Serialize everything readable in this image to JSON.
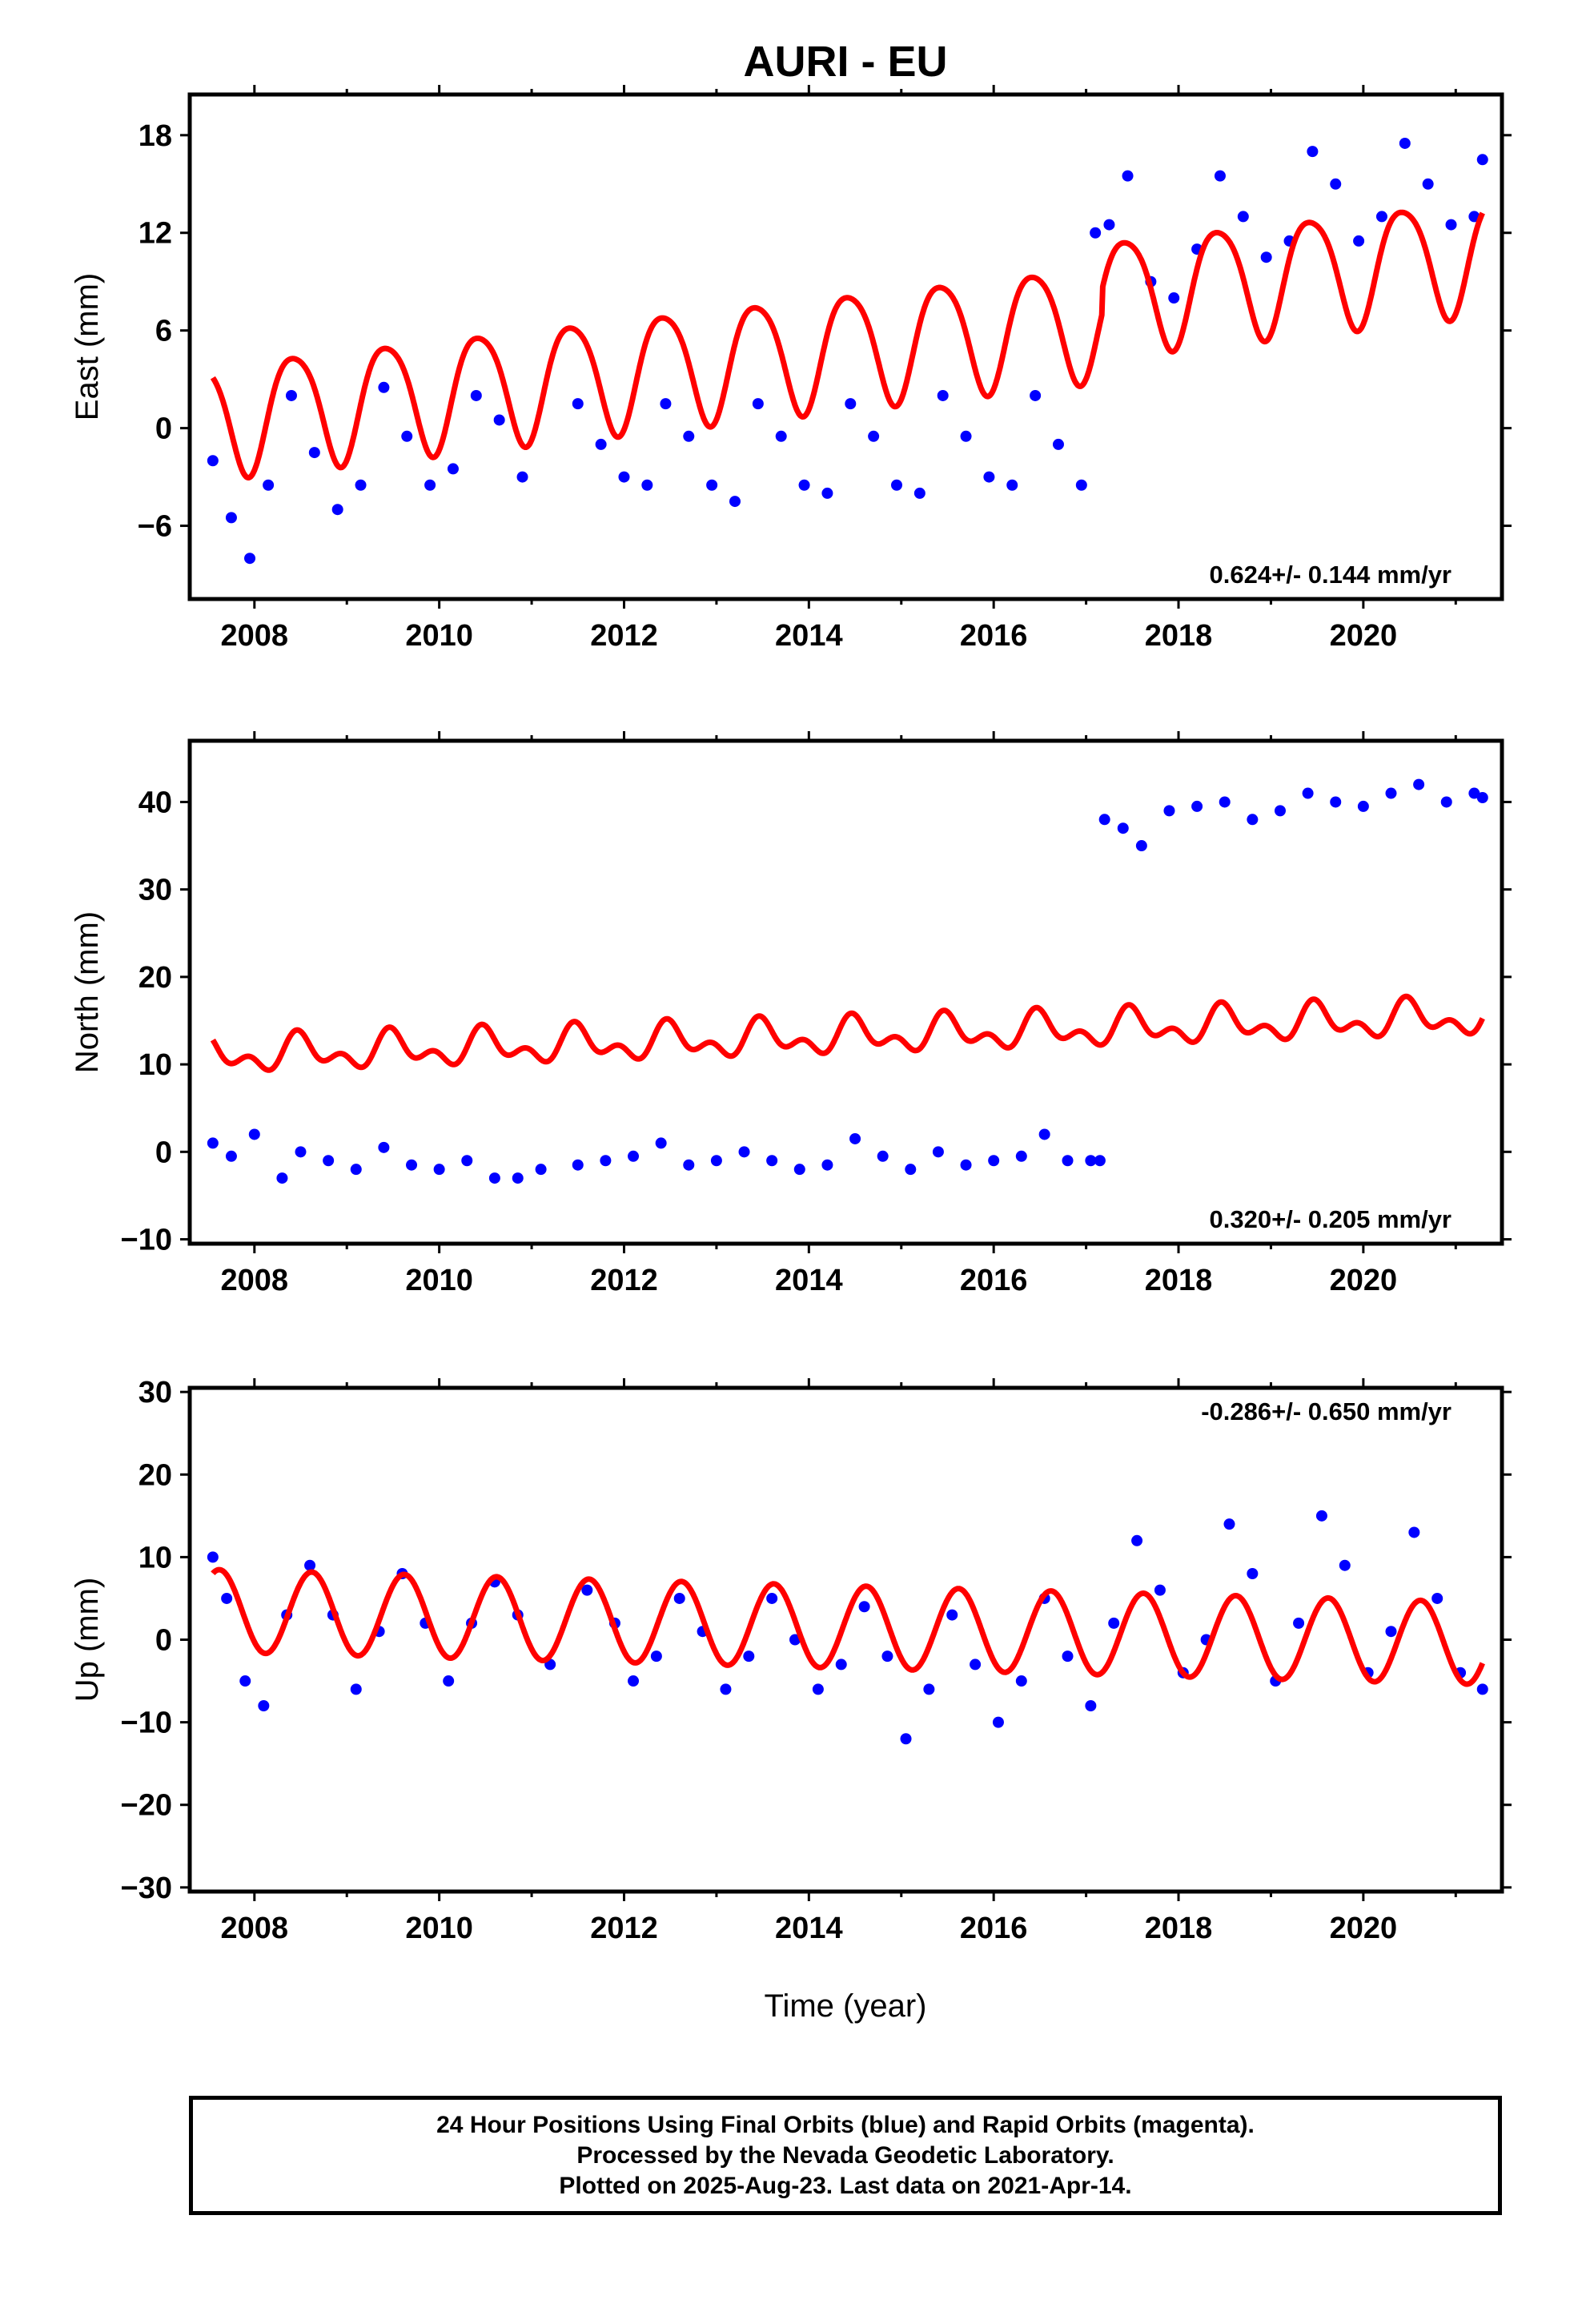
{
  "title": "AURI - EU",
  "xlabel": "Time (year)",
  "footer": {
    "line1": "24 Hour Positions Using Final Orbits (blue) and Rapid Orbits (magenta).",
    "line2": "Processed by the Nevada Geodetic Laboratory.",
    "line3": "Plotted on 2025-Aug-23. Last data on 2021-Apr-14."
  },
  "colors": {
    "final_orbits": "#0000ff",
    "model": "#ff0000",
    "axes": "#000000"
  },
  "chart_data": [
    {
      "type": "scatter",
      "ylabel": "East (mm)",
      "rate_annotation": "0.624+/- 0.144 mm/yr",
      "xlim": [
        2007.3,
        2021.5
      ],
      "ylim": [
        -10.5,
        20.5
      ],
      "xticks": [
        2008,
        2010,
        2012,
        2014,
        2016,
        2018,
        2020
      ],
      "yticks": [
        -6,
        0,
        6,
        12,
        18
      ],
      "grid": false,
      "series": [
        {
          "type": "scatter",
          "color": "#0000ff",
          "x": [
            2007.55,
            2007.75,
            2007.95,
            2008.15,
            2008.4,
            2008.65,
            2008.9,
            2009.15,
            2009.4,
            2009.65,
            2009.9,
            2010.15,
            2010.4,
            2010.65,
            2010.9,
            2011.5,
            2011.75,
            2012.0,
            2012.25,
            2012.45,
            2012.7,
            2012.95,
            2013.2,
            2013.45,
            2013.7,
            2013.95,
            2014.2,
            2014.45,
            2014.7,
            2014.95,
            2015.2,
            2015.45,
            2015.7,
            2015.95,
            2016.2,
            2016.45,
            2016.7,
            2016.95,
            2017.1,
            2017.25,
            2017.45,
            2017.7,
            2017.95,
            2018.2,
            2018.45,
            2018.7,
            2018.95,
            2019.2,
            2019.45,
            2019.7,
            2019.95,
            2020.2,
            2020.45,
            2020.7,
            2020.95,
            2021.2,
            2021.29
          ],
          "y": [
            -2.0,
            -5.5,
            -8.0,
            -3.5,
            2.0,
            -1.5,
            -5.0,
            -3.5,
            2.5,
            -0.5,
            -3.5,
            -2.5,
            2.0,
            0.5,
            -3.0,
            1.5,
            -1.0,
            -3.0,
            -3.5,
            1.5,
            -0.5,
            -3.5,
            -4.5,
            1.5,
            -0.5,
            -3.5,
            -4.0,
            1.5,
            -0.5,
            -3.5,
            -4.0,
            2.0,
            -0.5,
            -3.0,
            -3.5,
            2.0,
            -1.0,
            -3.5,
            12.0,
            12.5,
            15.5,
            9.0,
            8.0,
            11.0,
            15.5,
            13.0,
            10.5,
            11.5,
            17.0,
            15.0,
            11.5,
            13.0,
            17.5,
            15.0,
            12.5,
            13.0,
            16.5
          ]
        },
        {
          "type": "line",
          "color": "#ff0000",
          "model": {
            "t0": 2007.55,
            "offset": 0.7,
            "rate": 0.624,
            "annual": 3.5,
            "annual_phase": 2008.43,
            "semiannual": 0.5,
            "semiannual_phase": 2008.2,
            "steps": [
              {
                "at": 2017.17,
                "size": 1.5
              }
            ]
          }
        }
      ]
    },
    {
      "type": "scatter",
      "ylabel": "North (mm)",
      "rate_annotation": "0.320+/- 0.205 mm/yr",
      "xlim": [
        2007.3,
        2021.5
      ],
      "ylim": [
        -10.5,
        47
      ],
      "xticks": [
        2008,
        2010,
        2012,
        2014,
        2016,
        2018,
        2020
      ],
      "yticks": [
        -10,
        0,
        10,
        20,
        30,
        40
      ],
      "grid": false,
      "series": [
        {
          "type": "scatter",
          "color": "#0000ff",
          "x": [
            2007.55,
            2007.75,
            2008.0,
            2008.3,
            2008.5,
            2008.8,
            2009.1,
            2009.4,
            2009.7,
            2010.0,
            2010.3,
            2010.6,
            2010.85,
            2011.1,
            2011.5,
            2011.8,
            2012.1,
            2012.4,
            2012.7,
            2013.0,
            2013.3,
            2013.6,
            2013.9,
            2014.2,
            2014.5,
            2014.8,
            2015.1,
            2015.4,
            2015.7,
            2016.0,
            2016.3,
            2016.55,
            2016.8,
            2017.05,
            2017.15,
            2017.2,
            2017.4,
            2017.6,
            2017.9,
            2018.2,
            2018.5,
            2018.8,
            2019.1,
            2019.4,
            2019.7,
            2020.0,
            2020.3,
            2020.6,
            2020.9,
            2021.2,
            2021.29
          ],
          "y": [
            1.0,
            -0.5,
            2.0,
            -3.0,
            0.0,
            -1.0,
            -2.0,
            0.5,
            -1.5,
            -2.0,
            -1.0,
            -3.0,
            -3.0,
            -2.0,
            -1.5,
            -1.0,
            -0.5,
            1.0,
            -1.5,
            -1.0,
            0.0,
            -1.0,
            -2.0,
            -1.5,
            1.5,
            -0.5,
            -2.0,
            0.0,
            -1.5,
            -1.0,
            -0.5,
            2.0,
            -1.0,
            -1.0,
            -1.0,
            38.0,
            37.0,
            35.0,
            39.0,
            39.5,
            40.0,
            38.0,
            39.0,
            41.0,
            40.0,
            39.5,
            41.0,
            42.0,
            40.0,
            41.0,
            40.5
          ]
        },
        {
          "type": "line",
          "color": "#ff0000",
          "model": {
            "t0": 2007.55,
            "offset": 11.0,
            "rate": 0.32,
            "annual": 1.5,
            "annual_phase": 2008.5,
            "semiannual": 1.2,
            "semiannual_phase": 2008.45,
            "steps": []
          }
        }
      ]
    },
    {
      "type": "scatter",
      "ylabel": "Up (mm)",
      "rate_annotation": "-0.286+/- 0.650 mm/yr",
      "xlim": [
        2007.3,
        2021.5
      ],
      "ylim": [
        -30.5,
        30.5
      ],
      "xticks": [
        2008,
        2010,
        2012,
        2014,
        2016,
        2018,
        2020
      ],
      "yticks": [
        -30,
        -20,
        -10,
        0,
        10,
        20,
        30
      ],
      "grid": false,
      "series": [
        {
          "type": "scatter",
          "color": "#0000ff",
          "x": [
            2007.55,
            2007.7,
            2007.9,
            2008.1,
            2008.35,
            2008.6,
            2008.85,
            2009.1,
            2009.35,
            2009.6,
            2009.85,
            2010.1,
            2010.35,
            2010.6,
            2010.85,
            2011.2,
            2011.6,
            2011.9,
            2012.1,
            2012.35,
            2012.6,
            2012.85,
            2013.1,
            2013.35,
            2013.6,
            2013.85,
            2014.1,
            2014.35,
            2014.6,
            2014.85,
            2015.05,
            2015.3,
            2015.55,
            2015.8,
            2016.05,
            2016.3,
            2016.55,
            2016.8,
            2017.05,
            2017.3,
            2017.55,
            2017.8,
            2018.05,
            2018.3,
            2018.55,
            2018.8,
            2019.05,
            2019.3,
            2019.55,
            2019.8,
            2020.05,
            2020.3,
            2020.55,
            2020.8,
            2021.05,
            2021.29
          ],
          "y": [
            10.0,
            5.0,
            -5.0,
            -8.0,
            3.0,
            9.0,
            3.0,
            -6.0,
            1.0,
            8.0,
            2.0,
            -5.0,
            2.0,
            7.0,
            3.0,
            -3.0,
            6.0,
            2.0,
            -5.0,
            -2.0,
            5.0,
            1.0,
            -6.0,
            -2.0,
            5.0,
            0.0,
            -6.0,
            -3.0,
            4.0,
            -2.0,
            -12.0,
            -6.0,
            3.0,
            -3.0,
            -10.0,
            -5.0,
            5.0,
            -2.0,
            -8.0,
            2.0,
            12.0,
            6.0,
            -4.0,
            0.0,
            14.0,
            8.0,
            -5.0,
            2.0,
            15.0,
            9.0,
            -4.0,
            1.0,
            13.0,
            5.0,
            -4.0,
            -6.0
          ]
        },
        {
          "type": "line",
          "color": "#ff0000",
          "model": {
            "t0": 2007.55,
            "offset": 3.5,
            "rate": -0.286,
            "annual": 5.0,
            "annual_phase": 2007.62,
            "semiannual": 0.0,
            "semiannual_phase": 2007.62,
            "steps": []
          }
        }
      ]
    }
  ]
}
